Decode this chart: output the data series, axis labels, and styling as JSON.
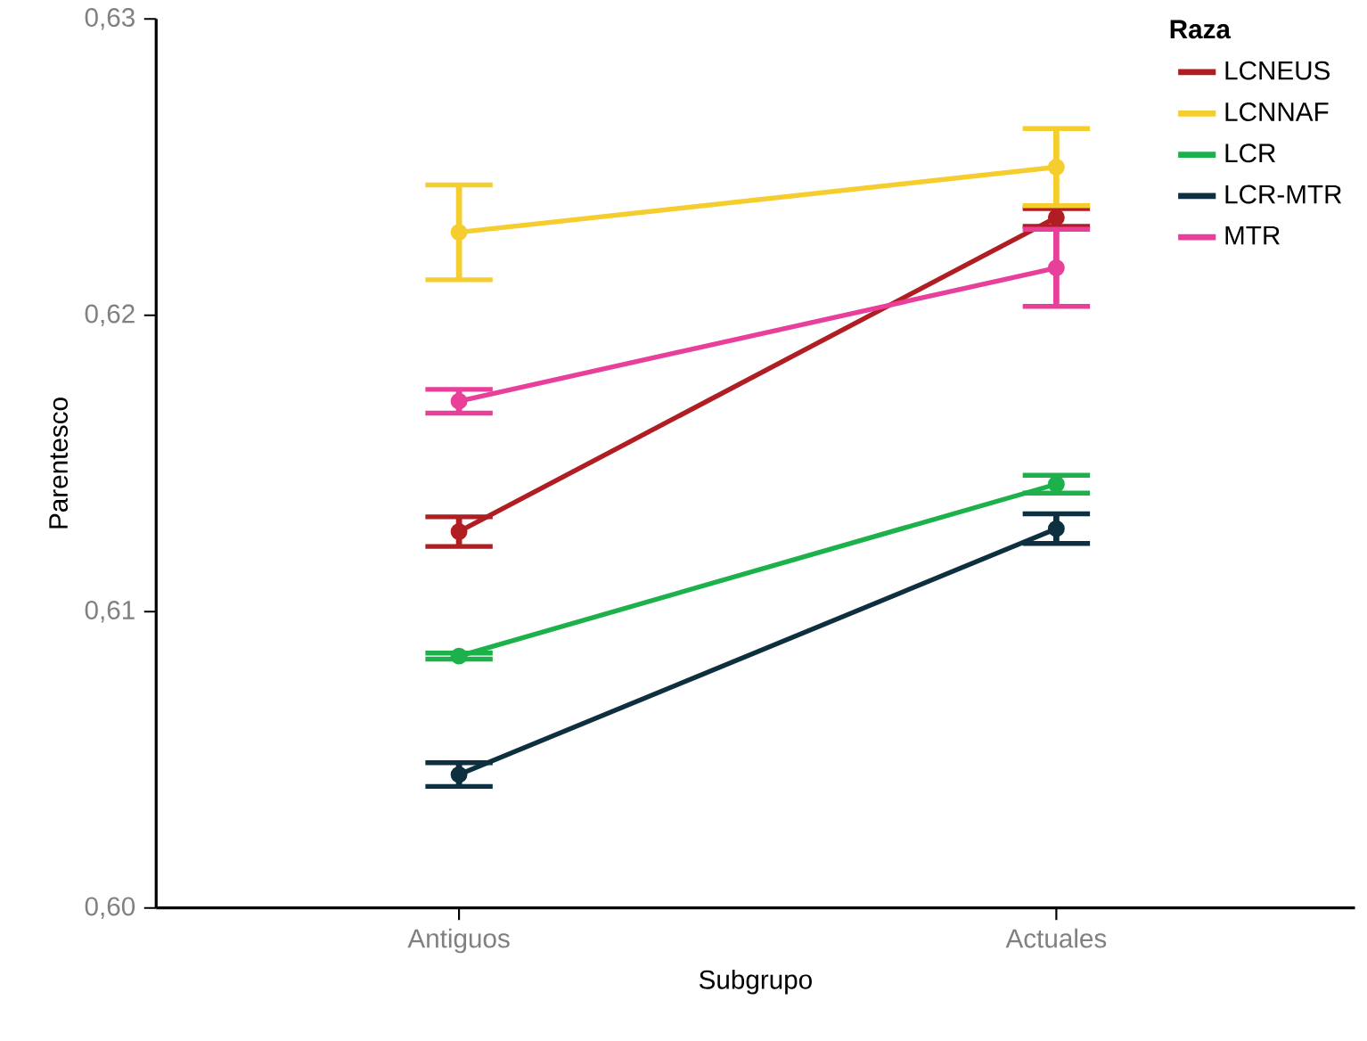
{
  "chart_data": {
    "type": "line",
    "xlabel": "Subgrupo",
    "ylabel": "Parentesco",
    "legend_title": "Raza",
    "categories": [
      "Antiguos",
      "Actuales"
    ],
    "series": [
      {
        "name": "LCNEUS",
        "color": "#b01e23",
        "values": [
          0.6127,
          0.6233
        ],
        "errors": [
          0.0005,
          0.0003
        ]
      },
      {
        "name": "LCNNAF",
        "color": "#f5cd2e",
        "values": [
          0.6228,
          0.625
        ],
        "errors": [
          0.0016,
          0.0013
        ]
      },
      {
        "name": "LCR",
        "color": "#1db14b",
        "values": [
          0.6085,
          0.6143
        ],
        "errors": [
          0.0001,
          0.0003
        ]
      },
      {
        "name": "LCR-MTR",
        "color": "#0d2f3f",
        "values": [
          0.6045,
          0.6128
        ],
        "errors": [
          0.0004,
          0.0005
        ]
      },
      {
        "name": "MTR",
        "color": "#e8409a",
        "values": [
          0.6171,
          0.6216
        ],
        "errors": [
          0.0004,
          0.0013
        ]
      }
    ],
    "ylim": [
      0.6,
      0.63
    ],
    "yticks": [
      {
        "value": 0.6,
        "label": "0,60"
      },
      {
        "value": 0.61,
        "label": "0,61"
      },
      {
        "value": 0.62,
        "label": "0,62"
      },
      {
        "value": 0.63,
        "label": "0,63"
      }
    ],
    "legend": "top right",
    "marker": "circle",
    "grid": false
  }
}
